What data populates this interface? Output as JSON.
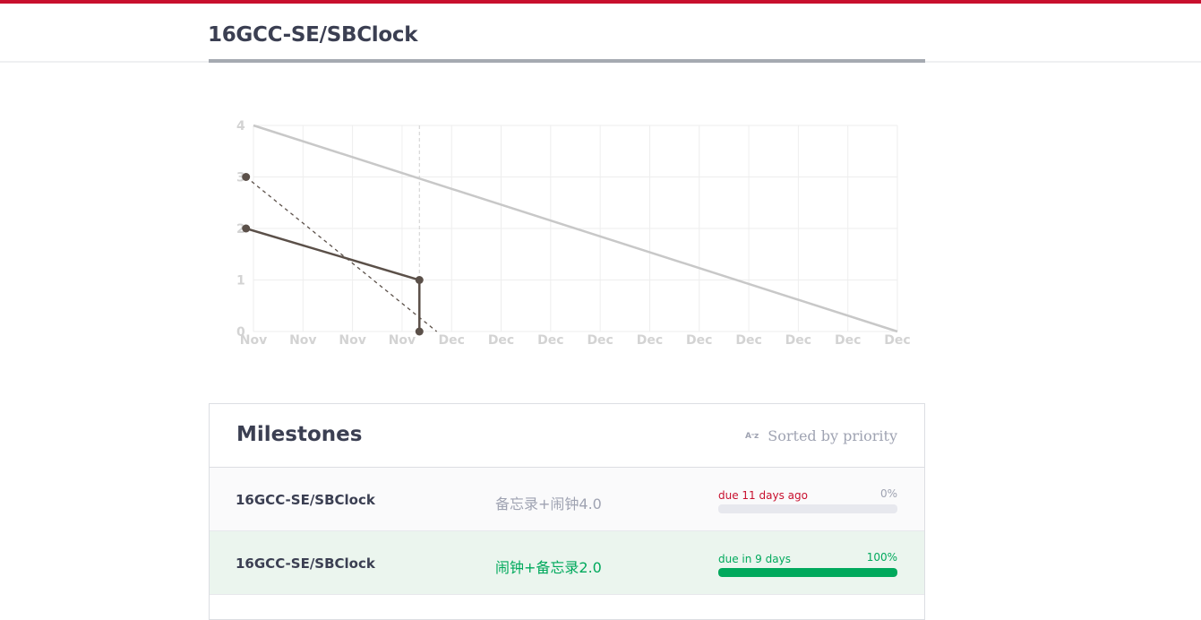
{
  "page": {
    "repo_title": "16GCC-SE/SBClock",
    "accent_color": "#c8102e",
    "title_underline_color": "#a5aab1"
  },
  "chart_data": {
    "type": "line",
    "x_tick_labels": [
      "Nov",
      "Nov",
      "Nov",
      "Nov",
      "Dec",
      "Dec",
      "Dec",
      "Dec",
      "Dec",
      "Dec",
      "Dec",
      "Dec",
      "Dec",
      "Dec"
    ],
    "y_ticks": [
      0,
      1,
      2,
      3,
      4
    ],
    "ylim": [
      0,
      4
    ],
    "x_domain": [
      0,
      13
    ],
    "grid": true,
    "today_x": 3.35,
    "series": [
      {
        "key": "ideal",
        "style": "solid-light",
        "color": "#c8c8c8",
        "points": [
          [
            0,
            4
          ],
          [
            13,
            0
          ]
        ]
      },
      {
        "key": "projection",
        "style": "dashed",
        "color": "#5b5049",
        "points": [
          [
            -0.15,
            3
          ],
          [
            3.7,
            0
          ]
        ]
      },
      {
        "key": "actual",
        "style": "solid-dark",
        "color": "#5b5049",
        "points": [
          [
            -0.15,
            2
          ],
          [
            3.35,
            1
          ],
          [
            3.35,
            0
          ]
        ]
      },
      {
        "key": "marker-total",
        "style": "marker",
        "color": "#5b5049",
        "points": [
          [
            -0.15,
            3
          ]
        ]
      }
    ]
  },
  "milestones": {
    "title": "Milestones",
    "sort_icon": "A-Z",
    "sort_label": "Sorted by priority",
    "rows": [
      {
        "repo": "16GCC-SE/SBClock",
        "name": "备忘录+闹钟4.0",
        "due": "due 11 days ago",
        "percent": "0%",
        "progress": 0,
        "row_bg": "#fafafb",
        "name_color": "#9fa3b2",
        "due_color": "#c8102e",
        "pct_color": "#9fa3b2",
        "bar_bg": "#e7e8ee",
        "bar_fill": "#00a95c"
      },
      {
        "repo": "16GCC-SE/SBClock",
        "name": "闹钟+备忘录2.0",
        "due": "due in 9 days",
        "percent": "100%",
        "progress": 1,
        "row_bg": "#ebf5ee",
        "name_color": "#00a95c",
        "due_color": "#00a95c",
        "pct_color": "#00a95c",
        "bar_bg": "#e7e8ee",
        "bar_fill": "#00a95c"
      }
    ]
  }
}
